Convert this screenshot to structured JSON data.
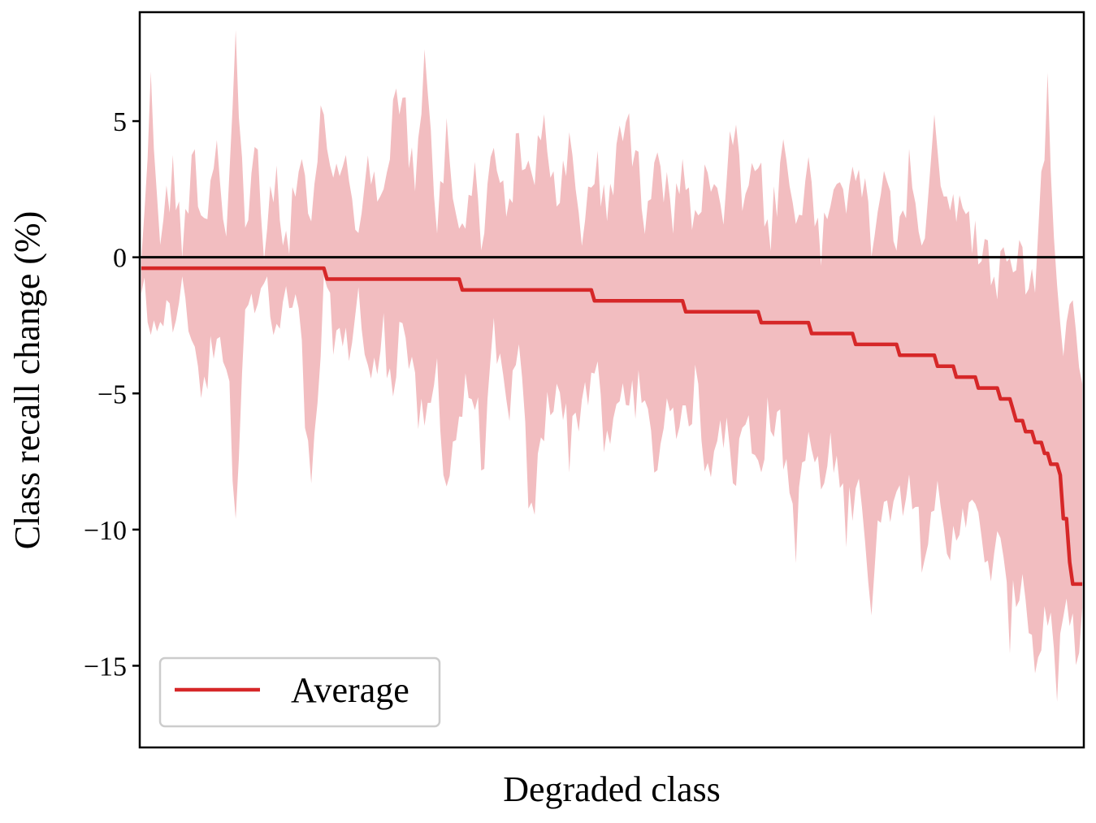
{
  "chart_data": {
    "type": "line",
    "xlabel": "Degraded class",
    "ylabel": "Class recall change (%)",
    "ylim": [
      -18,
      9
    ],
    "yticks": [
      5,
      0,
      -5,
      -10,
      -15
    ],
    "ytick_labels": [
      "5",
      "0",
      "−5",
      "−10",
      "−15"
    ],
    "xticks_shown": false,
    "grid": false,
    "reference_line_y": 0,
    "legend": {
      "position": "bottom-left",
      "entries": [
        "Average"
      ]
    },
    "colors": {
      "average": "#d62728",
      "band": "#f2bdc0",
      "reference": "#000000"
    },
    "n_classes": 300,
    "series": [
      {
        "name": "Average",
        "average_steps": [
          {
            "from_class": 0,
            "to_class": 58,
            "value": -0.4
          },
          {
            "from_class": 59,
            "to_class": 101,
            "value": -0.8
          },
          {
            "from_class": 102,
            "to_class": 143,
            "value": -1.2
          },
          {
            "from_class": 144,
            "to_class": 172,
            "value": -1.6
          },
          {
            "from_class": 173,
            "to_class": 196,
            "value": -2.0
          },
          {
            "from_class": 197,
            "to_class": 212,
            "value": -2.4
          },
          {
            "from_class": 213,
            "to_class": 226,
            "value": -2.8
          },
          {
            "from_class": 227,
            "to_class": 240,
            "value": -3.2
          },
          {
            "from_class": 241,
            "to_class": 252,
            "value": -3.6
          },
          {
            "from_class": 253,
            "to_class": 258,
            "value": -4.0
          },
          {
            "from_class": 259,
            "to_class": 265,
            "value": -4.4
          },
          {
            "from_class": 266,
            "to_class": 272,
            "value": -4.8
          },
          {
            "from_class": 273,
            "to_class": 276,
            "value": -5.2
          },
          {
            "from_class": 277,
            "to_class": 277,
            "value": -5.6
          },
          {
            "from_class": 278,
            "to_class": 280,
            "value": -6.0
          },
          {
            "from_class": 281,
            "to_class": 283,
            "value": -6.4
          },
          {
            "from_class": 284,
            "to_class": 286,
            "value": -6.8
          },
          {
            "from_class": 287,
            "to_class": 288,
            "value": -7.2
          },
          {
            "from_class": 289,
            "to_class": 291,
            "value": -7.6
          },
          {
            "from_class": 292,
            "to_class": 292,
            "value": -8.0
          },
          {
            "from_class": 293,
            "to_class": 294,
            "value": -9.6
          },
          {
            "from_class": 295,
            "to_class": 295,
            "value": -11.2
          },
          {
            "from_class": 296,
            "to_class": 299,
            "value": -12.0
          }
        ],
        "band_upper_anchors": [
          [
            0,
            1.0
          ],
          [
            3,
            7.2
          ],
          [
            6,
            2.2
          ],
          [
            10,
            4.0
          ],
          [
            13,
            2.0
          ],
          [
            17,
            4.8
          ],
          [
            20,
            2.4
          ],
          [
            24,
            5.6
          ],
          [
            27,
            1.6
          ],
          [
            30,
            8.9
          ],
          [
            33,
            2.0
          ],
          [
            36,
            5.4
          ],
          [
            39,
            1.2
          ],
          [
            42,
            4.0
          ],
          [
            46,
            1.6
          ],
          [
            50,
            4.4
          ],
          [
            54,
            2.0
          ],
          [
            58,
            6.8
          ],
          [
            61,
            3.6
          ],
          [
            65,
            5.2
          ],
          [
            69,
            1.6
          ],
          [
            73,
            4.8
          ],
          [
            77,
            2.8
          ],
          [
            80,
            6.0
          ],
          [
            83,
            7.4
          ],
          [
            87,
            3.2
          ],
          [
            90,
            8.2
          ],
          [
            94,
            2.4
          ],
          [
            97,
            5.4
          ],
          [
            101,
            2.0
          ],
          [
            105,
            4.2
          ],
          [
            109,
            1.8
          ],
          [
            112,
            5.6
          ],
          [
            116,
            2.8
          ],
          [
            120,
            5.2
          ],
          [
            124,
            3.6
          ],
          [
            128,
            6.8
          ],
          [
            132,
            2.4
          ],
          [
            136,
            5.0
          ],
          [
            140,
            2.2
          ],
          [
            144,
            4.4
          ],
          [
            148,
            2.8
          ],
          [
            152,
            6.0
          ],
          [
            156,
            5.2
          ],
          [
            160,
            3.0
          ],
          [
            164,
            5.6
          ],
          [
            168,
            2.4
          ],
          [
            172,
            5.0
          ],
          [
            176,
            1.8
          ],
          [
            180,
            4.4
          ],
          [
            184,
            2.2
          ],
          [
            188,
            5.6
          ],
          [
            192,
            2.8
          ],
          [
            196,
            4.2
          ],
          [
            200,
            2.0
          ],
          [
            204,
            5.0
          ],
          [
            208,
            2.4
          ],
          [
            212,
            4.0
          ],
          [
            216,
            1.8
          ],
          [
            220,
            4.6
          ],
          [
            224,
            2.2
          ],
          [
            228,
            5.2
          ],
          [
            232,
            1.6
          ],
          [
            236,
            4.8
          ],
          [
            240,
            2.0
          ],
          [
            244,
            4.0
          ],
          [
            248,
            1.6
          ],
          [
            252,
            5.4
          ],
          [
            256,
            2.4
          ],
          [
            260,
            3.6
          ],
          [
            264,
            2.0
          ],
          [
            268,
            1.0
          ],
          [
            272,
            0.4
          ],
          [
            276,
            1.6
          ],
          [
            280,
            0.8
          ],
          [
            284,
            0.0
          ],
          [
            288,
            7.5
          ],
          [
            291,
            -1.0
          ],
          [
            294,
            -2.0
          ],
          [
            296,
            0.6
          ],
          [
            299,
            -3.2
          ]
        ],
        "band_lower_anchors": [
          [
            0,
            -2.0
          ],
          [
            3,
            -4.8
          ],
          [
            6,
            -2.8
          ],
          [
            10,
            -3.8
          ],
          [
            13,
            -1.8
          ],
          [
            17,
            -4.4
          ],
          [
            20,
            -6.3
          ],
          [
            24,
            -3.2
          ],
          [
            27,
            -5.0
          ],
          [
            30,
            -9.9
          ],
          [
            33,
            -2.4
          ],
          [
            36,
            -3.6
          ],
          [
            39,
            -1.6
          ],
          [
            42,
            -4.2
          ],
          [
            46,
            -2.8
          ],
          [
            50,
            -3.4
          ],
          [
            54,
            -10.2
          ],
          [
            58,
            -2.4
          ],
          [
            61,
            -3.6
          ],
          [
            65,
            -4.6
          ],
          [
            69,
            -2.6
          ],
          [
            73,
            -6.0
          ],
          [
            77,
            -4.0
          ],
          [
            80,
            -5.4
          ],
          [
            83,
            -3.2
          ],
          [
            87,
            -6.4
          ],
          [
            90,
            -7.8
          ],
          [
            94,
            -5.2
          ],
          [
            97,
            -9.5
          ],
          [
            101,
            -6.8
          ],
          [
            105,
            -5.8
          ],
          [
            109,
            -8.6
          ],
          [
            112,
            -4.4
          ],
          [
            116,
            -6.6
          ],
          [
            120,
            -5.0
          ],
          [
            124,
            -11.0
          ],
          [
            128,
            -7.2
          ],
          [
            132,
            -5.4
          ],
          [
            136,
            -8.0
          ],
          [
            140,
            -6.2
          ],
          [
            144,
            -5.2
          ],
          [
            148,
            -8.4
          ],
          [
            152,
            -6.4
          ],
          [
            156,
            -5.6
          ],
          [
            160,
            -7.0
          ],
          [
            164,
            -8.6
          ],
          [
            168,
            -6.0
          ],
          [
            172,
            -7.6
          ],
          [
            176,
            -5.8
          ],
          [
            180,
            -8.8
          ],
          [
            184,
            -6.6
          ],
          [
            188,
            -9.2
          ],
          [
            192,
            -7.2
          ],
          [
            196,
            -8.4
          ],
          [
            200,
            -6.8
          ],
          [
            204,
            -8.0
          ],
          [
            208,
            -11.3
          ],
          [
            212,
            -7.6
          ],
          [
            216,
            -9.6
          ],
          [
            220,
            -8.2
          ],
          [
            224,
            -10.8
          ],
          [
            228,
            -8.6
          ],
          [
            232,
            -14.2
          ],
          [
            236,
            -9.2
          ],
          [
            240,
            -10.4
          ],
          [
            244,
            -8.8
          ],
          [
            248,
            -11.6
          ],
          [
            252,
            -9.6
          ],
          [
            256,
            -12.6
          ],
          [
            260,
            -10.6
          ],
          [
            264,
            -9.4
          ],
          [
            268,
            -13.0
          ],
          [
            272,
            -11.4
          ],
          [
            276,
            -14.6
          ],
          [
            280,
            -12.4
          ],
          [
            284,
            -16.2
          ],
          [
            288,
            -13.8
          ],
          [
            291,
            -17.0
          ],
          [
            294,
            -14.0
          ],
          [
            296,
            -15.2
          ],
          [
            299,
            -14.6
          ]
        ]
      }
    ]
  }
}
